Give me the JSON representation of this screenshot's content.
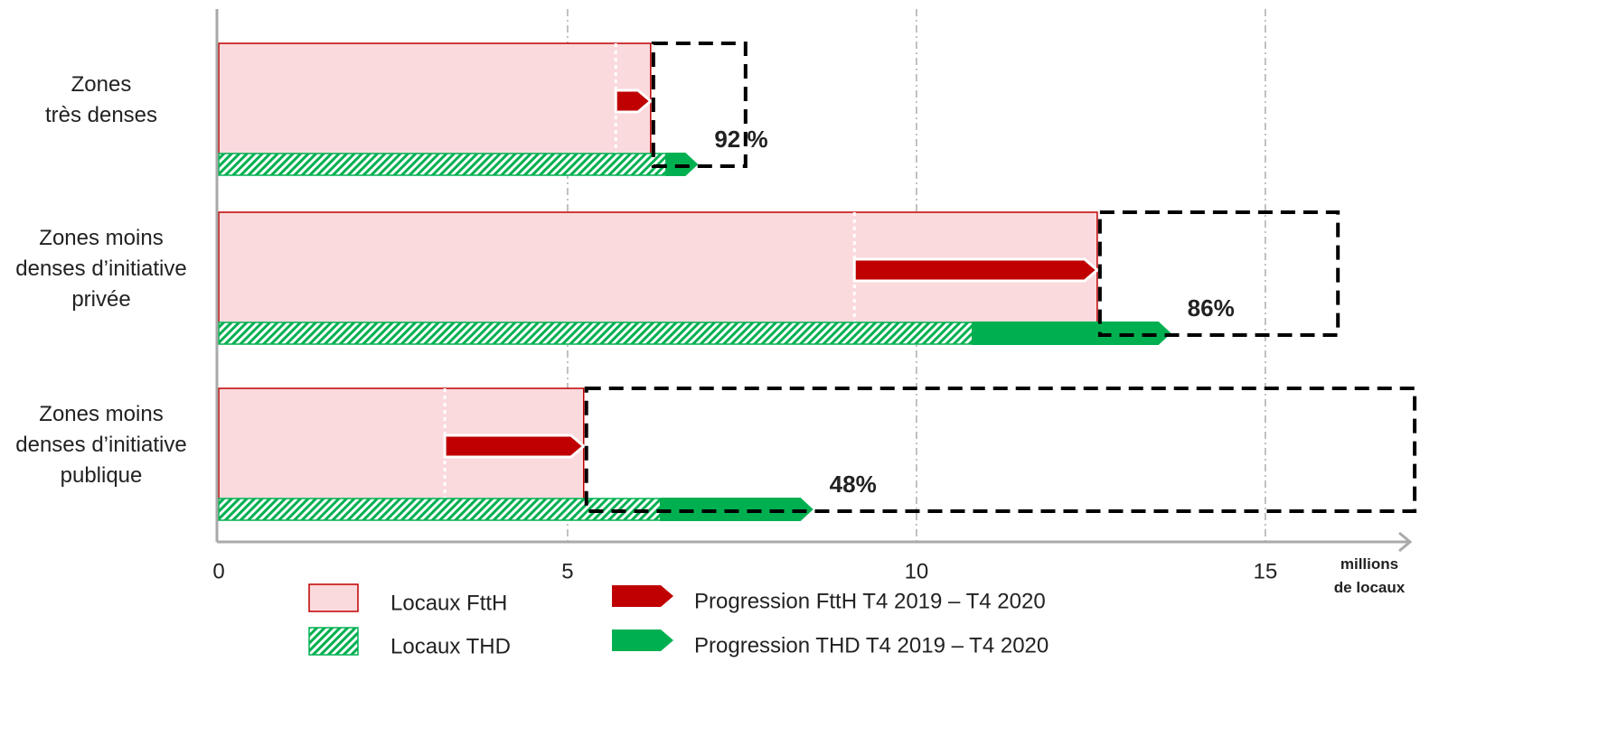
{
  "chart_data": {
    "type": "bar",
    "categories": [
      [
        "Zones",
        "très denses"
      ],
      [
        "Zones moins",
        "denses d’initiative",
        "privée"
      ],
      [
        "Zones moins",
        "denses d’initiative",
        "publique"
      ]
    ],
    "series": [
      {
        "name": "Locaux FttH",
        "color": "#fadadd",
        "edge": "#c00000",
        "values": [
          6.19,
          12.59,
          5.23
        ]
      },
      {
        "name": "Progression FttH T4 2019 – T4 2020",
        "color": "#c00000",
        "values": [
          0.5,
          3.48,
          1.99
        ]
      },
      {
        "name": "Locaux THD",
        "color": "#00b050",
        "hatch": true,
        "values": [
          6.41,
          10.8,
          6.33
        ]
      },
      {
        "name": "Progression THD T4 2019 – T4 2020",
        "color": "#00b050",
        "values": [
          0.46,
          2.85,
          2.19
        ]
      }
    ],
    "totals": [
      7.55,
      16.04,
      17.14
    ],
    "shares": {
      "values": [
        92,
        86,
        48
      ],
      "value_labels": [
        "92 %",
        "86%",
        "48%"
      ],
      "color": "#1a7a1a"
    },
    "x_label": [
      "millions",
      "de locaux"
    ],
    "xlim": [
      0,
      17.1
    ],
    "xticks": [
      0,
      5,
      10,
      15
    ],
    "grid": true
  }
}
